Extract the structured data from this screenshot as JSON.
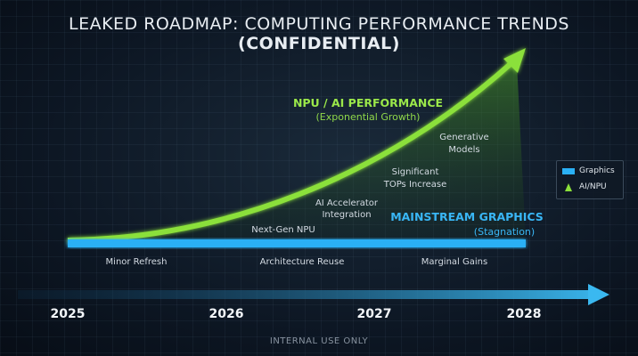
{
  "title_plain": "LEAKED ROADMAP: COMPUTING PERFORMANCE TRENDS ",
  "title_bold": "(CONFIDENTIAL)",
  "footer": "INTERNAL USE ONLY",
  "colors": {
    "graphics": "#2ab0f5",
    "ai_npu": "#8be03a"
  },
  "chart_data": {
    "type": "line",
    "x": [
      "2025",
      "2026",
      "2027",
      "2028"
    ],
    "series": [
      {
        "name": "Graphics",
        "trend": "flat"
      },
      {
        "name": "AI/NPU",
        "trend": "exponential"
      }
    ],
    "series_labels": {
      "ai_title": "NPU / AI PERFORMANCE",
      "ai_sub": "(Exponential Growth)",
      "graphics_title": "MAINSTREAM GRAPHICS",
      "graphics_sub": "(Stagnation)"
    },
    "ai_annotations": [
      {
        "lines": [
          "Next-Gen NPU"
        ]
      },
      {
        "lines": [
          "AI Accelerator",
          "Integration"
        ]
      },
      {
        "lines": [
          "Significant",
          "TOPs Increase"
        ]
      },
      {
        "lines": [
          "Generative",
          "Models"
        ]
      }
    ],
    "graphics_annotations": [
      "Minor Refresh",
      "Architecture Reuse",
      "Marginal Gains"
    ],
    "legend": {
      "position": "right",
      "items": [
        "Graphics",
        "AI/NPU"
      ]
    }
  }
}
